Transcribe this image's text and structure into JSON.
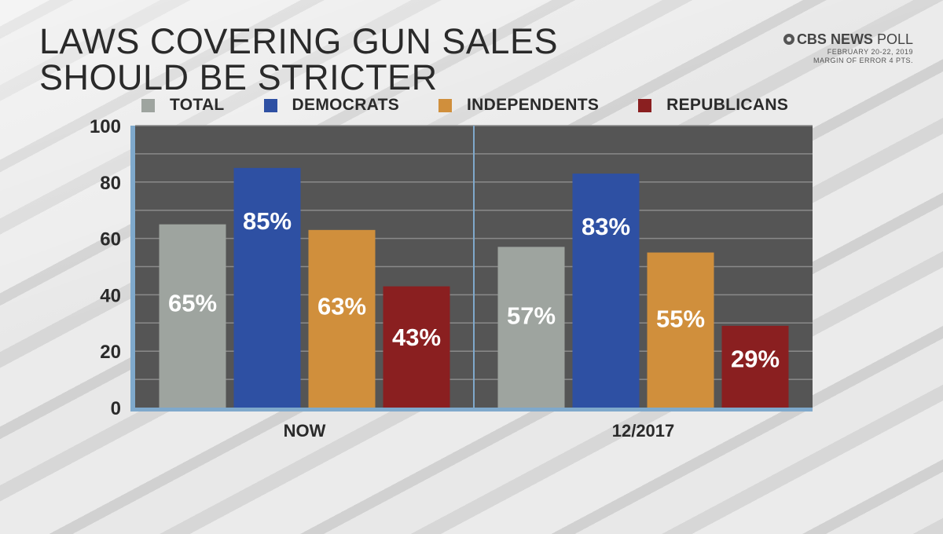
{
  "title": {
    "line1": "LAWS COVERING GUN SALES",
    "line2": "SHOULD BE STRICTER"
  },
  "source": {
    "brand": "CBS NEWS",
    "poll": "POLL",
    "date": "FEBRUARY 20-22, 2019",
    "margin": "MARGIN OF ERROR 4 PTS."
  },
  "colors": {
    "total": "#9ea49f",
    "democrats": "#2e50a3",
    "independents": "#d08f3c",
    "republicans": "#8a1f20",
    "plot_bg": "#555555",
    "axis": "#7fa9cc"
  },
  "chart_data": {
    "type": "bar",
    "title": "LAWS COVERING GUN SALES SHOULD BE STRICTER",
    "categories": [
      "NOW",
      "12/2017"
    ],
    "series": [
      {
        "name": "TOTAL",
        "values": [
          65,
          57
        ],
        "labels": [
          "65%",
          "57%"
        ]
      },
      {
        "name": "DEMOCRATS",
        "values": [
          85,
          83
        ],
        "labels": [
          "85%",
          "83%"
        ]
      },
      {
        "name": "INDEPENDENTS",
        "values": [
          63,
          55
        ],
        "labels": [
          "63%",
          "55%"
        ]
      },
      {
        "name": "REPUBLICANS",
        "values": [
          43,
          29
        ],
        "labels": [
          "43%",
          "29%"
        ]
      }
    ],
    "xlabel": "",
    "ylabel": "",
    "ylim": [
      0,
      100
    ],
    "yticks": [
      "0",
      "20",
      "40",
      "60",
      "80",
      "100"
    ],
    "grid": true,
    "legend": "top"
  }
}
